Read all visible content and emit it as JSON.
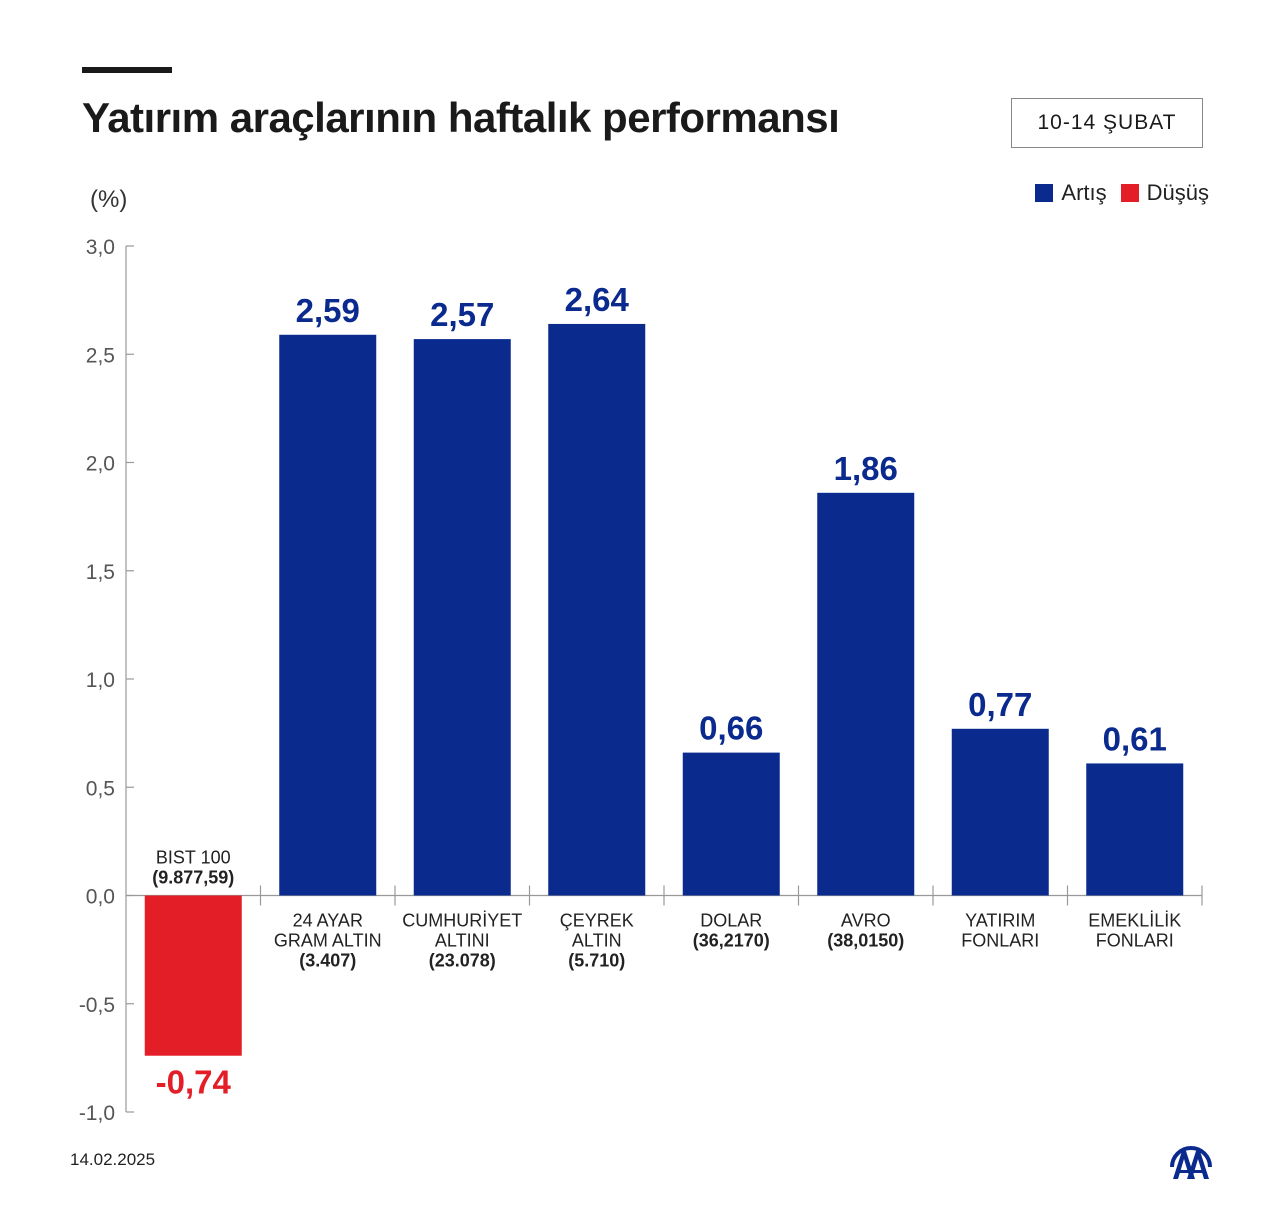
{
  "header": {
    "title": "Yatırım araçlarının haftalık performansı",
    "date_range": "10-14 ŞUBAT"
  },
  "footer": {
    "date": "14.02.2025",
    "logo": "AA"
  },
  "colors": {
    "increase": "#0a2a8e",
    "decrease": "#e41e26"
  },
  "chart_data": {
    "type": "bar",
    "ylabel": "(%)",
    "ylim": [
      -1.0,
      3.0
    ],
    "yticks": [
      "-1,0",
      "-0,5",
      "0,0",
      "0,5",
      "1,0",
      "1,5",
      "2,0",
      "2,5",
      "3,0"
    ],
    "ytick_values": [
      -1.0,
      -0.5,
      0,
      0.5,
      1.0,
      1.5,
      2.0,
      2.5,
      3.0
    ],
    "grid": false,
    "legend": {
      "position": "top-right",
      "entries": [
        "Artış",
        "Düşüş"
      ]
    },
    "categories": [
      {
        "name": [
          "BIST 100"
        ],
        "price": "(9.877,59)"
      },
      {
        "name": [
          "24 AYAR",
          "GRAM ALTIN"
        ],
        "price": "(3.407)"
      },
      {
        "name": [
          "CUMHURİYET",
          "ALTINI"
        ],
        "price": "(23.078)"
      },
      {
        "name": [
          "ÇEYREK",
          "ALTIN"
        ],
        "price": "(5.710)"
      },
      {
        "name": [
          "DOLAR"
        ],
        "price": "(36,2170)"
      },
      {
        "name": [
          "AVRO"
        ],
        "price": "(38,0150)"
      },
      {
        "name": [
          "YATIRIM",
          "FONLARI"
        ],
        "price": ""
      },
      {
        "name": [
          "EMEKLİLİK",
          "FONLARI"
        ],
        "price": ""
      }
    ],
    "values": [
      -0.74,
      2.59,
      2.57,
      2.64,
      0.66,
      1.86,
      0.77,
      0.61
    ],
    "value_labels": [
      "-0,74",
      "2,59",
      "2,57",
      "2,64",
      "0,66",
      "1,86",
      "0,77",
      "0,61"
    ]
  }
}
